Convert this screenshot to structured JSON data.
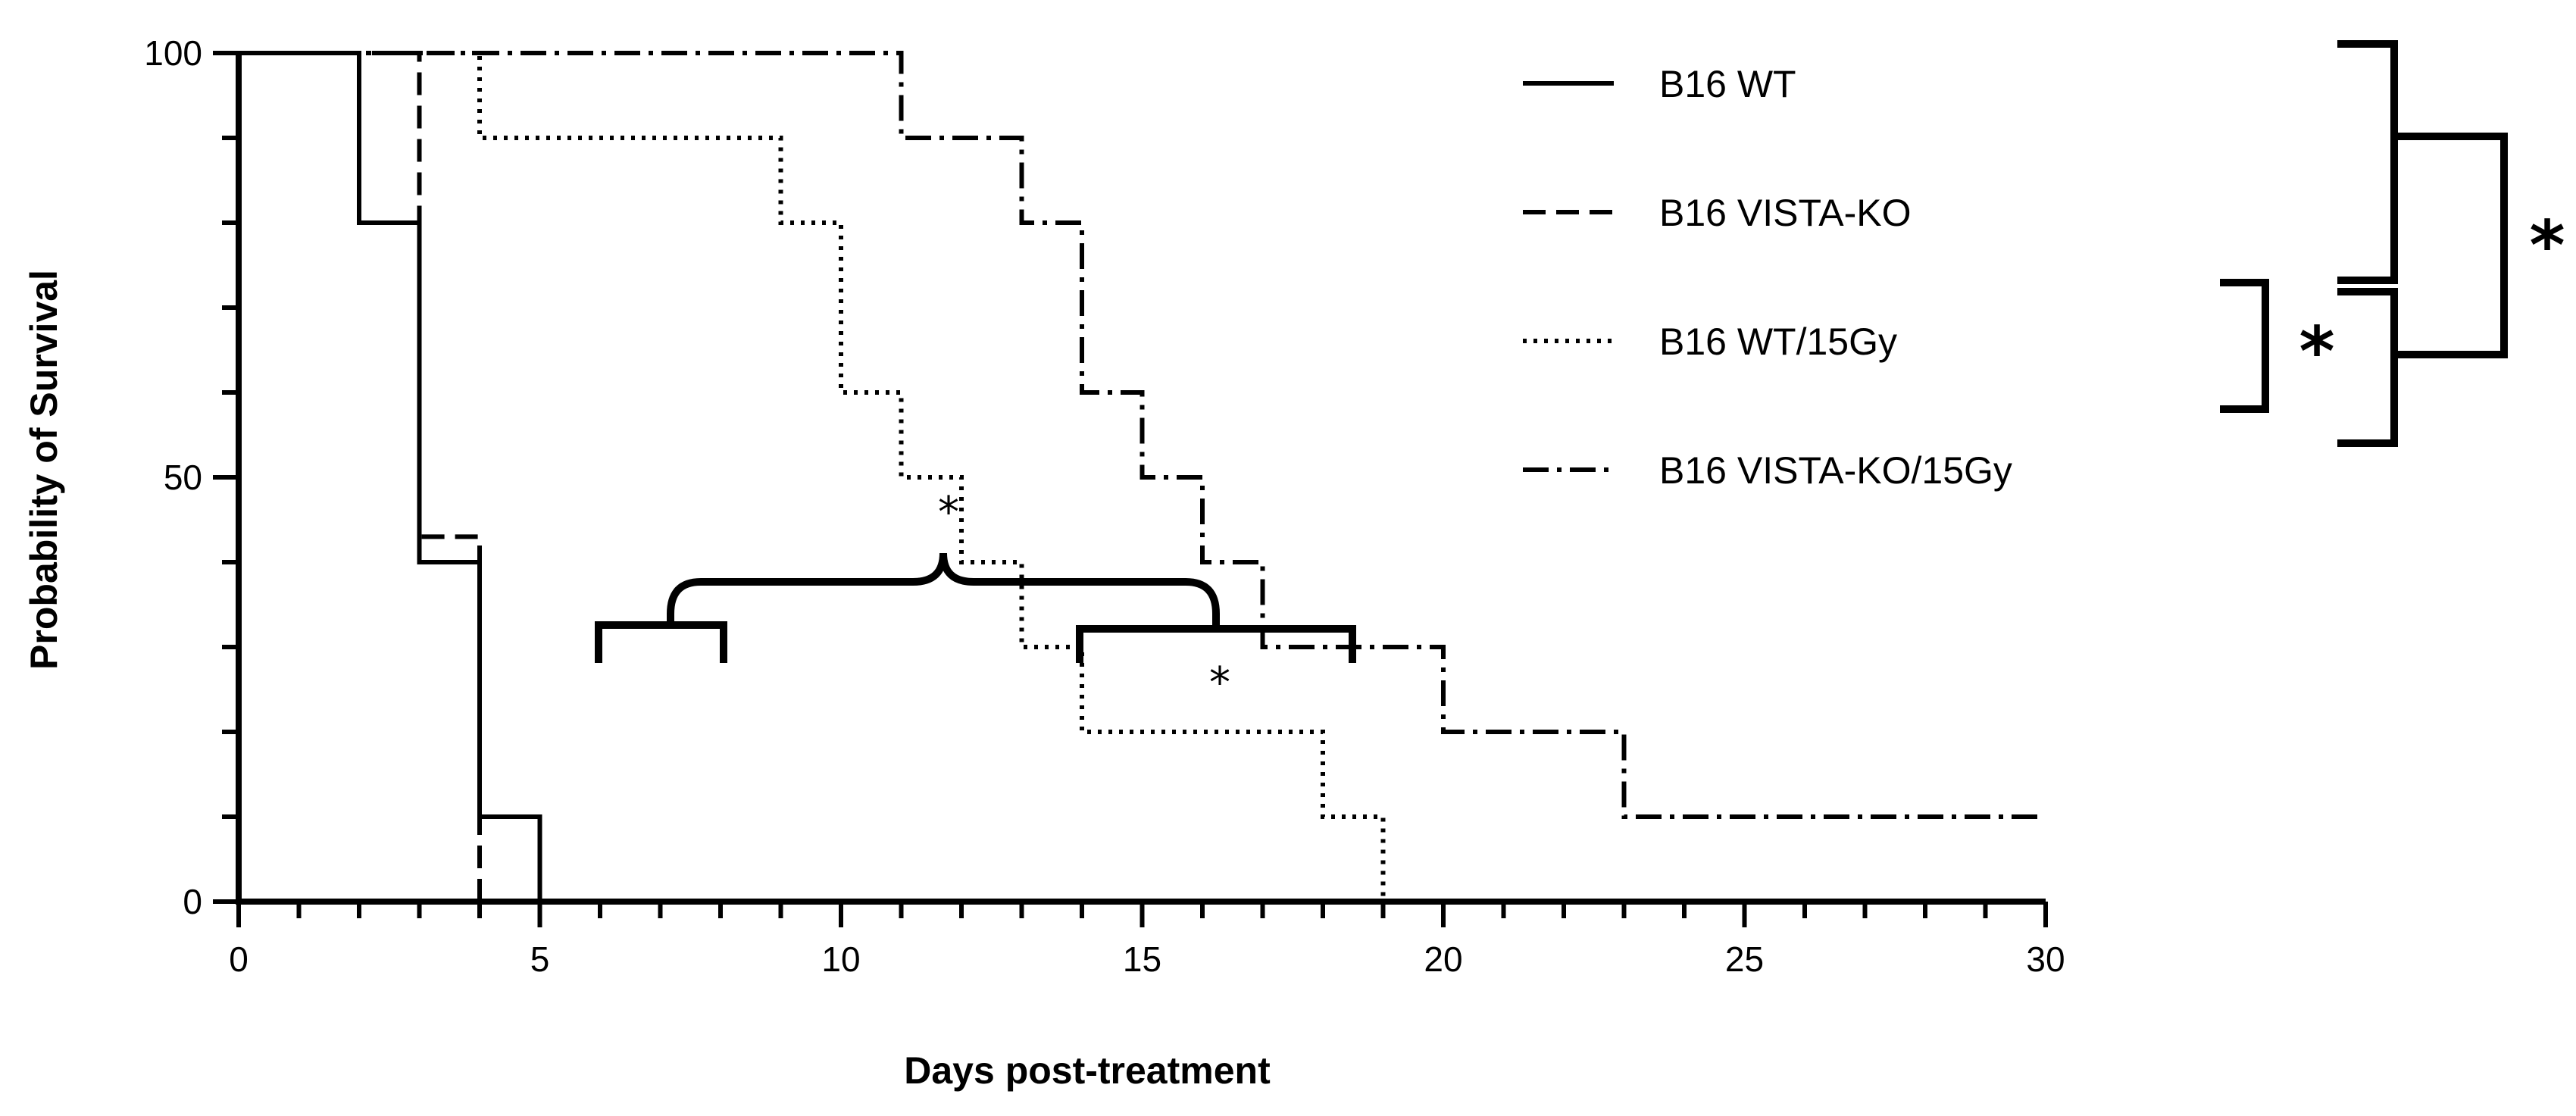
{
  "chart_data": {
    "type": "line",
    "subtype": "kaplan-meier-step",
    "title": "",
    "xlabel": "Days post-treatment",
    "ylabel": "Probability of Survival",
    "xlim": [
      0,
      30
    ],
    "ylim": [
      0,
      100
    ],
    "xticks": [
      0,
      5,
      10,
      15,
      20,
      25,
      30
    ],
    "xtick_labels": [
      "0",
      "5",
      "10",
      "15",
      "20",
      "25",
      "30"
    ],
    "yticks": [
      0,
      50,
      100
    ],
    "ytick_labels": [
      "0",
      "50",
      "100"
    ],
    "grid": false,
    "legend_position": "top-right",
    "series": [
      {
        "name": "B16 WT",
        "style": "solid",
        "color": "#000000",
        "steps": [
          [
            0,
            100
          ],
          [
            2,
            80
          ],
          [
            3,
            40
          ],
          [
            4,
            10
          ],
          [
            5,
            0
          ]
        ]
      },
      {
        "name": "B16 VISTA-KO",
        "style": "dashed",
        "color": "#000000",
        "steps": [
          [
            0,
            100
          ],
          [
            3,
            43
          ],
          [
            4,
            0
          ]
        ]
      },
      {
        "name": "B16 WT/15Gy",
        "style": "dotted",
        "color": "#000000",
        "steps": [
          [
            0,
            100
          ],
          [
            4,
            90
          ],
          [
            9,
            80
          ],
          [
            10,
            60
          ],
          [
            11,
            50
          ],
          [
            12,
            40
          ],
          [
            13,
            30
          ],
          [
            14,
            20
          ],
          [
            18,
            10
          ],
          [
            19,
            0
          ]
        ]
      },
      {
        "name": "B16 VISTA-KO/15Gy",
        "style": "dashdot",
        "color": "#000000",
        "steps": [
          [
            0,
            100
          ],
          [
            11,
            90
          ],
          [
            13,
            80
          ],
          [
            14,
            60
          ],
          [
            15,
            50
          ],
          [
            16,
            40
          ],
          [
            17,
            30
          ],
          [
            20,
            20
          ],
          [
            23,
            10
          ],
          [
            30,
            10
          ]
        ]
      }
    ],
    "annotations": [
      {
        "type": "significance",
        "label": "*",
        "between": [
          "B16 WT",
          "B16 VISTA-KO"
        ],
        "location": "legend-right-outer"
      },
      {
        "type": "significance",
        "label": "*",
        "between": [
          "B16 WT/15Gy",
          "B16 VISTA-KO/15Gy"
        ],
        "location": "legend-right-inner"
      },
      {
        "type": "significance",
        "label": "*",
        "location": "plot-upper-bracket"
      },
      {
        "type": "significance",
        "label": "*",
        "location": "plot-lower-bracket"
      }
    ]
  }
}
